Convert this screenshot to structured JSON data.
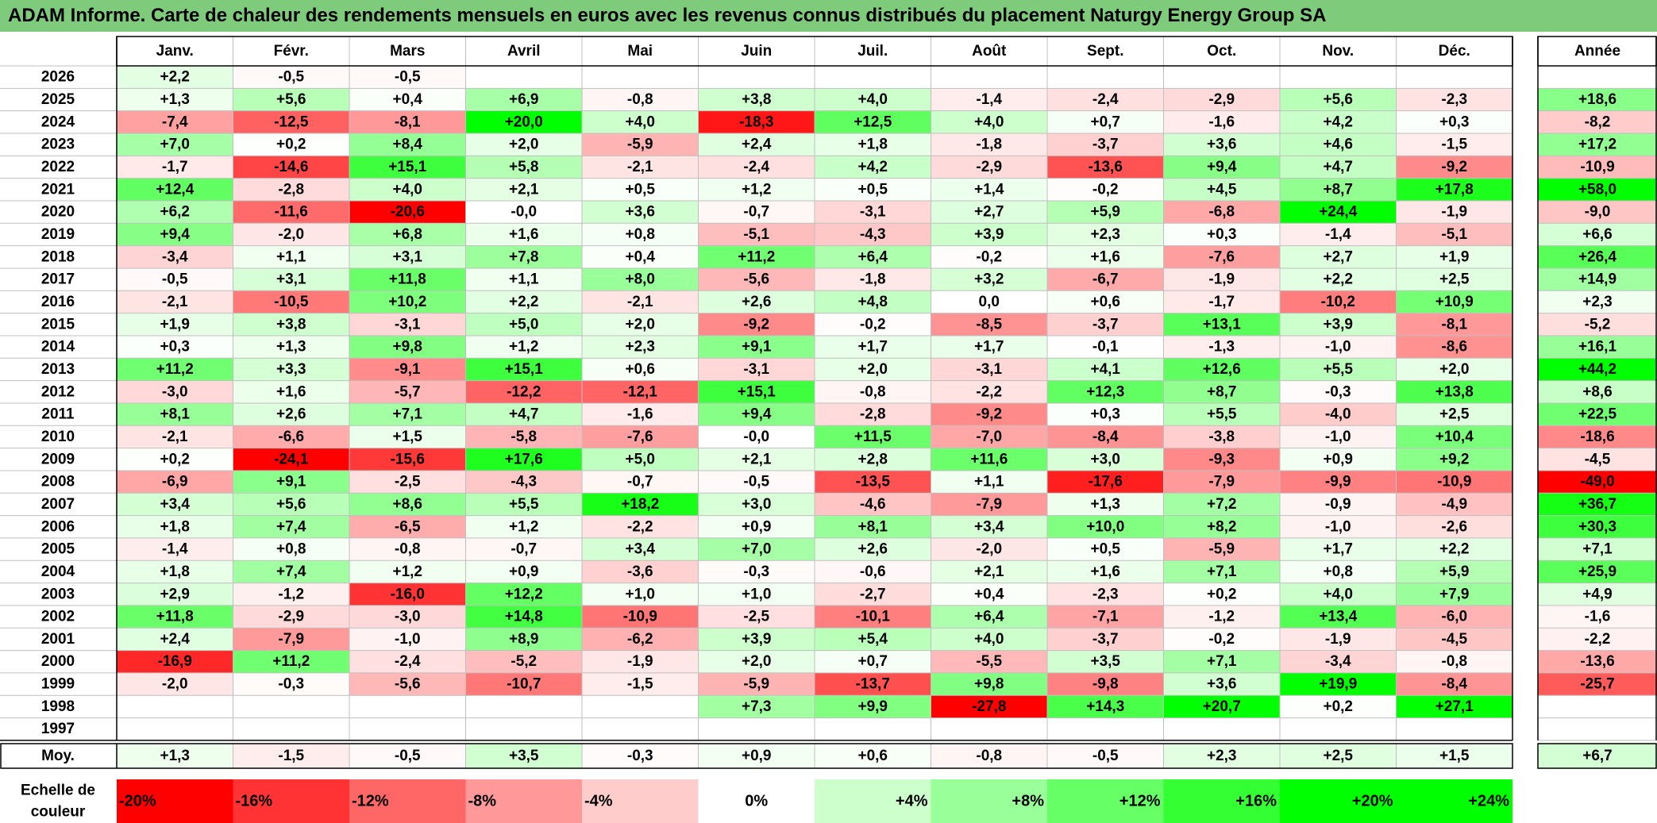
{
  "title": "ADAM Informe. Carte de chaleur des rendements mensuels en euros avec les revenus connus distribués du placement Naturgy Energy Group SA",
  "chart_data": {
    "type": "heatmap",
    "months": [
      "Janv.",
      "Févr.",
      "Mars",
      "Avril",
      "Mai",
      "Juin",
      "Juil.",
      "Août",
      "Sept.",
      "Oct.",
      "Nov.",
      "Déc."
    ],
    "year_col_label": "Année",
    "avg_label": "Moy.",
    "years": [
      "2026",
      "2025",
      "2024",
      "2023",
      "2022",
      "2021",
      "2020",
      "2019",
      "2018",
      "2017",
      "2016",
      "2015",
      "2014",
      "2013",
      "2012",
      "2011",
      "2010",
      "2009",
      "2008",
      "2007",
      "2006",
      "2005",
      "2004",
      "2003",
      "2002",
      "2001",
      "2000",
      "1999",
      "1998",
      "1997"
    ],
    "values": [
      [
        "+2,2",
        "-0,5",
        "-0,5",
        "",
        "",
        "",
        "",
        "",
        "",
        "",
        "",
        ""
      ],
      [
        "+1,3",
        "+5,6",
        "+0,4",
        "+6,9",
        "-0,8",
        "+3,8",
        "+4,0",
        "-1,4",
        "-2,4",
        "-2,9",
        "+5,6",
        "-2,3"
      ],
      [
        "-7,4",
        "-12,5",
        "-8,1",
        "+20,0",
        "+4,0",
        "-18,3",
        "+12,5",
        "+4,0",
        "+0,7",
        "-1,6",
        "+4,2",
        "+0,3"
      ],
      [
        "+7,0",
        "+0,2",
        "+8,4",
        "+2,0",
        "-5,9",
        "+2,4",
        "+1,8",
        "-1,8",
        "-3,7",
        "+3,6",
        "+4,6",
        "-1,5"
      ],
      [
        "-1,7",
        "-14,6",
        "+15,1",
        "+5,8",
        "-2,1",
        "-2,4",
        "+4,2",
        "-2,9",
        "-13,6",
        "+9,4",
        "+4,7",
        "-9,2"
      ],
      [
        "+12,4",
        "-2,8",
        "+4,0",
        "+2,1",
        "+0,5",
        "+1,2",
        "+0,5",
        "+1,4",
        "-0,2",
        "+4,5",
        "+8,7",
        "+17,8"
      ],
      [
        "+6,2",
        "-11,6",
        "-20,6",
        "-0,0",
        "+3,6",
        "-0,7",
        "-3,1",
        "+2,7",
        "+5,9",
        "-6,8",
        "+24,4",
        "-1,9"
      ],
      [
        "+9,4",
        "-2,0",
        "+6,8",
        "+1,6",
        "+0,8",
        "-5,1",
        "-4,3",
        "+3,9",
        "+2,3",
        "+0,3",
        "-1,4",
        "-5,1"
      ],
      [
        "-3,4",
        "+1,1",
        "+3,1",
        "+7,8",
        "+0,4",
        "+11,2",
        "+6,4",
        "-0,2",
        "+1,6",
        "-7,6",
        "+2,7",
        "+1,9"
      ],
      [
        "-0,5",
        "+3,1",
        "+11,8",
        "+1,1",
        "+8,0",
        "-5,6",
        "-1,8",
        "+3,2",
        "-6,7",
        "-1,9",
        "+2,2",
        "+2,5"
      ],
      [
        "-2,1",
        "-10,5",
        "+10,2",
        "+2,2",
        "-2,1",
        "+2,6",
        "+4,8",
        "0,0",
        "+0,6",
        "-1,7",
        "-10,2",
        "+10,9"
      ],
      [
        "+1,9",
        "+3,8",
        "-3,1",
        "+5,0",
        "+2,0",
        "-9,2",
        "-0,2",
        "-8,5",
        "-3,7",
        "+13,1",
        "+3,9",
        "-8,1"
      ],
      [
        "+0,3",
        "+1,3",
        "+9,8",
        "+1,2",
        "+2,3",
        "+9,1",
        "+1,7",
        "+1,7",
        "-0,1",
        "-1,3",
        "-1,0",
        "-8,6"
      ],
      [
        "+11,2",
        "+3,3",
        "-9,1",
        "+15,1",
        "+0,6",
        "-3,1",
        "+2,0",
        "-3,1",
        "+4,1",
        "+12,6",
        "+5,5",
        "+2,0"
      ],
      [
        "-3,0",
        "+1,6",
        "-5,7",
        "-12,2",
        "-12,1",
        "+15,1",
        "-0,8",
        "-2,2",
        "+12,3",
        "+8,7",
        "-0,3",
        "+13,8"
      ],
      [
        "+8,1",
        "+2,6",
        "+7,1",
        "+4,7",
        "-1,6",
        "+9,4",
        "-2,8",
        "-9,2",
        "+0,3",
        "+5,5",
        "-4,0",
        "+2,5"
      ],
      [
        "-2,1",
        "-6,6",
        "+1,5",
        "-5,8",
        "-7,6",
        "-0,0",
        "+11,5",
        "-7,0",
        "-8,4",
        "-3,8",
        "-1,0",
        "+10,4"
      ],
      [
        "+0,2",
        "-24,1",
        "-15,6",
        "+17,6",
        "+5,0",
        "+2,1",
        "+2,8",
        "+11,6",
        "+3,0",
        "-9,3",
        "+0,9",
        "+9,2"
      ],
      [
        "-6,9",
        "+9,1",
        "-2,5",
        "-4,3",
        "-0,7",
        "-0,5",
        "-13,5",
        "+1,1",
        "-17,6",
        "-7,9",
        "-9,9",
        "-10,9"
      ],
      [
        "+3,4",
        "+5,6",
        "+8,6",
        "+5,5",
        "+18,2",
        "+3,0",
        "-4,6",
        "-7,9",
        "+1,3",
        "+7,2",
        "-0,9",
        "-4,9"
      ],
      [
        "+1,8",
        "+7,4",
        "-6,5",
        "+1,2",
        "-2,2",
        "+0,9",
        "+8,1",
        "+3,4",
        "+10,0",
        "+8,2",
        "-1,0",
        "-2,6"
      ],
      [
        "-1,4",
        "+0,8",
        "-0,8",
        "-0,7",
        "+3,4",
        "+7,0",
        "+2,6",
        "-2,0",
        "+0,5",
        "-5,9",
        "+1,7",
        "+2,2"
      ],
      [
        "+1,8",
        "+7,4",
        "+1,2",
        "+0,9",
        "-3,6",
        "-0,3",
        "-0,6",
        "+2,1",
        "+1,6",
        "+7,1",
        "+0,8",
        "+5,9"
      ],
      [
        "+2,9",
        "-1,2",
        "-16,0",
        "+12,2",
        "+1,0",
        "+1,0",
        "-2,7",
        "+0,4",
        "-2,3",
        "+0,2",
        "+4,0",
        "+7,9"
      ],
      [
        "+11,8",
        "-2,9",
        "-3,0",
        "+14,8",
        "-10,9",
        "-2,5",
        "-10,1",
        "+6,4",
        "-7,1",
        "-1,2",
        "+13,4",
        "-6,0"
      ],
      [
        "+2,4",
        "-7,9",
        "-1,0",
        "+8,9",
        "-6,2",
        "+3,9",
        "+5,4",
        "+4,0",
        "-3,7",
        "-0,2",
        "-1,9",
        "-4,5"
      ],
      [
        "-16,9",
        "+11,2",
        "-2,4",
        "-5,2",
        "-1,9",
        "+2,0",
        "+0,7",
        "-5,5",
        "+3,5",
        "+7,1",
        "-3,4",
        "-0,8"
      ],
      [
        "-2,0",
        "-0,3",
        "-5,6",
        "-10,7",
        "-1,5",
        "-5,9",
        "-13,7",
        "+9,8",
        "-9,8",
        "+3,6",
        "+19,9",
        "-8,4"
      ],
      [
        "",
        "",
        "",
        "",
        "",
        "+7,3",
        "+9,9",
        "-27,8",
        "+14,3",
        "+20,7",
        "+0,2",
        "+27,1"
      ],
      [
        "",
        "",
        "",
        "",
        "",
        "",
        "",
        "",
        "",
        "",
        "",
        ""
      ]
    ],
    "annual": [
      "",
      "+18,6",
      "-8,2",
      "+17,2",
      "-10,9",
      "+58,0",
      "-9,0",
      "+6,6",
      "+26,4",
      "+14,9",
      "+2,3",
      "-5,2",
      "+16,1",
      "+44,2",
      "+8,6",
      "+22,5",
      "-18,6",
      "-4,5",
      "-49,0",
      "+36,7",
      "+30,3",
      "+7,1",
      "+25,9",
      "+4,9",
      "-1,6",
      "-2,2",
      "-13,6",
      "-25,7",
      "",
      ""
    ],
    "averages": [
      "+1,3",
      "-1,5",
      "-0,5",
      "+3,5",
      "-0,3",
      "+0,9",
      "+0,6",
      "-0,8",
      "-0,5",
      "+2,3",
      "+2,5",
      "+1,5"
    ],
    "average_annual": "+6,7",
    "scale_label": "Echelle de couleur",
    "scale": [
      "-20%",
      "-16%",
      "-12%",
      "-8%",
      "-4%",
      "0%",
      "+4%",
      "+8%",
      "+12%",
      "+16%",
      "+20%",
      "+24%"
    ],
    "scale_values": [
      -20,
      -16,
      -12,
      -8,
      -4,
      0,
      4,
      8,
      12,
      16,
      20,
      24
    ],
    "colors": {
      "negative": "#ff0000",
      "positive": "#00ff00",
      "neutral": "#ffffff",
      "title_bg": "#7dcb7b",
      "grid": "#bfbfbf",
      "border": "#000000"
    }
  }
}
